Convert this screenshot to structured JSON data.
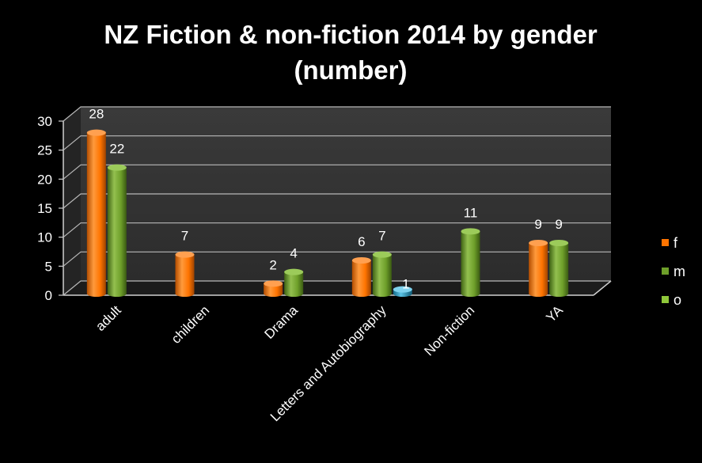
{
  "chart_data": {
    "type": "bar",
    "title": "NZ Fiction & non-fiction 2014 by gender (number)",
    "title_lines": [
      "NZ Fiction & non-fiction 2014 by gender",
      "(number)"
    ],
    "categories": [
      "adult",
      "children",
      "Drama",
      "Letters and Autobiography",
      "Non-fiction",
      "YA"
    ],
    "series": [
      {
        "name": "f",
        "values": [
          28,
          7,
          2,
          6,
          null,
          9
        ],
        "color": "#ff7400"
      },
      {
        "name": "m",
        "values": [
          22,
          null,
          4,
          7,
          11,
          9
        ],
        "color": "#6e9f2a"
      },
      {
        "name": "o",
        "values": [
          null,
          null,
          null,
          1,
          null,
          null
        ],
        "color": "#2aa1c9"
      }
    ],
    "ylim": [
      0,
      30
    ],
    "yticks": [
      "0",
      "5",
      "10",
      "15",
      "20",
      "25",
      "30"
    ],
    "grid": true,
    "legend_position": "right",
    "legend_swatch_colors": [
      "#ff7400",
      "#6e9f2a",
      "#8fc73a"
    ],
    "xlabel": "",
    "ylabel": ""
  }
}
